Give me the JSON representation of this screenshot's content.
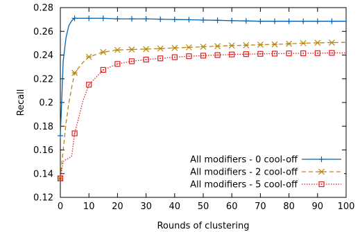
{
  "chart_data": {
    "type": "line",
    "title": "",
    "xlabel": "Rounds of clustering",
    "ylabel": "Recall",
    "xlim": [
      0,
      100
    ],
    "ylim": [
      0.12,
      0.28
    ],
    "x_ticks": [
      0,
      10,
      20,
      30,
      40,
      50,
      60,
      70,
      80,
      90,
      100
    ],
    "y_ticks": [
      0.12,
      0.14,
      0.16,
      0.18,
      0.2,
      0.22,
      0.24,
      0.26,
      0.28
    ],
    "x_tick_labels": [
      "0",
      "10",
      "20",
      "30",
      "40",
      "50",
      "60",
      "70",
      "80",
      "90",
      "100"
    ],
    "y_tick_labels": [
      "0.12",
      "0.14",
      "0.16",
      "0.18",
      "0.2",
      "0.22",
      "0.24",
      "0.26",
      "0.28"
    ],
    "grid": false,
    "legend_position": "bottom-right",
    "series": [
      {
        "name": "All modifiers - 0 cool-off",
        "color": "#0060ad",
        "marker": "plus",
        "dash": "solid",
        "x": [
          0,
          1,
          2,
          3,
          4,
          5,
          10,
          15,
          20,
          25,
          30,
          35,
          40,
          45,
          50,
          55,
          60,
          65,
          70,
          75,
          80,
          85,
          90,
          95,
          100
        ],
        "y": [
          0.172,
          0.235,
          0.255,
          0.265,
          0.269,
          0.271,
          0.271,
          0.271,
          0.2705,
          0.2705,
          0.2705,
          0.2702,
          0.27,
          0.2698,
          0.2695,
          0.2693,
          0.269,
          0.2688,
          0.2685,
          0.2685,
          0.2685,
          0.2685,
          0.2685,
          0.2685,
          0.2685
        ],
        "marker_x": [
          0,
          5,
          10,
          15,
          20,
          25,
          30,
          35,
          40,
          45,
          50,
          55,
          60,
          65,
          70,
          75,
          80,
          85,
          90,
          95
        ]
      },
      {
        "name": "All modifiers - 2 cool-off",
        "color": "#b8860b",
        "marker": "star",
        "dash": "dashed",
        "x": [
          0,
          1,
          2,
          3,
          4,
          5,
          8,
          10,
          15,
          20,
          25,
          30,
          35,
          40,
          45,
          50,
          55,
          60,
          65,
          70,
          75,
          80,
          85,
          90,
          95,
          100
        ],
        "y": [
          0.136,
          0.16,
          0.183,
          0.2,
          0.213,
          0.225,
          0.234,
          0.2385,
          0.2425,
          0.2443,
          0.2447,
          0.245,
          0.2455,
          0.246,
          0.2465,
          0.247,
          0.2475,
          0.248,
          0.2483,
          0.2487,
          0.249,
          0.2495,
          0.25,
          0.2503,
          0.2505,
          0.2507
        ],
        "marker_x": [
          0,
          5,
          10,
          15,
          20,
          25,
          30,
          35,
          40,
          45,
          50,
          55,
          60,
          65,
          70,
          75,
          80,
          85,
          90,
          95
        ]
      },
      {
        "name": "All modifiers - 5 cool-off",
        "color": "#e31a1c",
        "marker": "square",
        "dash": "dotted",
        "x": [
          0,
          1,
          2,
          3,
          4,
          5,
          8,
          10,
          15,
          20,
          25,
          30,
          35,
          40,
          45,
          50,
          55,
          60,
          65,
          70,
          75,
          80,
          85,
          90,
          95,
          100
        ],
        "y": [
          0.136,
          0.15,
          0.152,
          0.153,
          0.155,
          0.174,
          0.202,
          0.215,
          0.2275,
          0.2325,
          0.2348,
          0.2362,
          0.2372,
          0.2382,
          0.239,
          0.2395,
          0.24,
          0.2405,
          0.2408,
          0.241,
          0.2412,
          0.2414,
          0.2415,
          0.2416,
          0.2418,
          0.2418
        ],
        "marker_x": [
          0,
          5,
          10,
          15,
          20,
          25,
          30,
          35,
          40,
          45,
          50,
          55,
          60,
          65,
          70,
          75,
          80,
          85,
          90,
          95
        ]
      }
    ]
  }
}
